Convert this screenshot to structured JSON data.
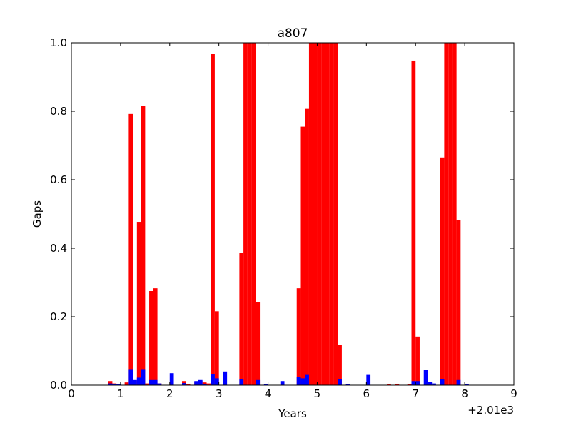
{
  "chart_data": {
    "type": "bar",
    "title": "a807",
    "xlabel": "Years",
    "ylabel": "Gaps",
    "xlim": [
      0,
      9
    ],
    "ylim": [
      0,
      1.0
    ],
    "x_offset_label": "+2.01e3",
    "xticks": [
      "0",
      "1",
      "2",
      "3",
      "4",
      "5",
      "6",
      "7",
      "8",
      "9"
    ],
    "yticks": [
      "0.0",
      "0.2",
      "0.4",
      "0.6",
      "0.8",
      "1.0"
    ],
    "grid": false,
    "bin_width": 0.0833,
    "colors": {
      "red_series": "#ff0000",
      "blue_series": "#0000ff"
    },
    "series": [
      {
        "color": "#ff0000",
        "points": [
          {
            "x": 0.75,
            "y": 0.012
          },
          {
            "x": 0.833,
            "y": 0.005
          },
          {
            "x": 0.917,
            "y": 0.003
          },
          {
            "x": 1.083,
            "y": 0.008
          },
          {
            "x": 1.167,
            "y": 0.792
          },
          {
            "x": 1.25,
            "y": 0.012
          },
          {
            "x": 1.333,
            "y": 0.477
          },
          {
            "x": 1.417,
            "y": 0.815
          },
          {
            "x": 1.5,
            "y": 0.005
          },
          {
            "x": 1.583,
            "y": 0.275
          },
          {
            "x": 1.667,
            "y": 0.283
          },
          {
            "x": 1.75,
            "y": 0.005
          },
          {
            "x": 2.25,
            "y": 0.012
          },
          {
            "x": 2.333,
            "y": 0.003
          },
          {
            "x": 2.5,
            "y": 0.008
          },
          {
            "x": 2.583,
            "y": 0.012
          },
          {
            "x": 2.667,
            "y": 0.008
          },
          {
            "x": 2.75,
            "y": 0.005
          },
          {
            "x": 2.833,
            "y": 0.967
          },
          {
            "x": 2.917,
            "y": 0.216
          },
          {
            "x": 3.417,
            "y": 0.386
          },
          {
            "x": 3.5,
            "y": 1.0
          },
          {
            "x": 3.583,
            "y": 1.0
          },
          {
            "x": 3.667,
            "y": 1.0
          },
          {
            "x": 3.75,
            "y": 0.242
          },
          {
            "x": 4.583,
            "y": 0.283
          },
          {
            "x": 4.667,
            "y": 0.755
          },
          {
            "x": 4.75,
            "y": 0.807
          },
          {
            "x": 4.833,
            "y": 1.0
          },
          {
            "x": 4.917,
            "y": 1.0
          },
          {
            "x": 5.0,
            "y": 1.0
          },
          {
            "x": 5.083,
            "y": 1.0
          },
          {
            "x": 5.167,
            "y": 1.0
          },
          {
            "x": 5.25,
            "y": 1.0
          },
          {
            "x": 5.333,
            "y": 1.0
          },
          {
            "x": 5.417,
            "y": 0.117
          },
          {
            "x": 6.417,
            "y": 0.003
          },
          {
            "x": 6.583,
            "y": 0.003
          },
          {
            "x": 6.833,
            "y": 0.003
          },
          {
            "x": 6.917,
            "y": 0.948
          },
          {
            "x": 7.0,
            "y": 0.142
          },
          {
            "x": 7.5,
            "y": 0.665
          },
          {
            "x": 7.583,
            "y": 1.0
          },
          {
            "x": 7.667,
            "y": 1.0
          },
          {
            "x": 7.75,
            "y": 1.0
          },
          {
            "x": 7.833,
            "y": 0.483
          }
        ]
      },
      {
        "color": "#0000ff",
        "points": [
          {
            "x": 0.75,
            "y": 0.005
          },
          {
            "x": 0.833,
            "y": 0.003
          },
          {
            "x": 0.917,
            "y": 0.003
          },
          {
            "x": 1.167,
            "y": 0.047
          },
          {
            "x": 1.25,
            "y": 0.015
          },
          {
            "x": 1.333,
            "y": 0.022
          },
          {
            "x": 1.417,
            "y": 0.047
          },
          {
            "x": 1.583,
            "y": 0.015
          },
          {
            "x": 1.667,
            "y": 0.015
          },
          {
            "x": 1.75,
            "y": 0.005
          },
          {
            "x": 2.0,
            "y": 0.035
          },
          {
            "x": 2.25,
            "y": 0.006
          },
          {
            "x": 2.5,
            "y": 0.012
          },
          {
            "x": 2.583,
            "y": 0.015
          },
          {
            "x": 2.667,
            "y": 0.003
          },
          {
            "x": 2.833,
            "y": 0.032
          },
          {
            "x": 2.917,
            "y": 0.02
          },
          {
            "x": 3.083,
            "y": 0.04
          },
          {
            "x": 3.417,
            "y": 0.017
          },
          {
            "x": 3.75,
            "y": 0.015
          },
          {
            "x": 3.917,
            "y": 0.003
          },
          {
            "x": 4.25,
            "y": 0.012
          },
          {
            "x": 4.583,
            "y": 0.025
          },
          {
            "x": 4.667,
            "y": 0.02
          },
          {
            "x": 4.75,
            "y": 0.03
          },
          {
            "x": 5.417,
            "y": 0.017
          },
          {
            "x": 5.583,
            "y": 0.003
          },
          {
            "x": 6.0,
            "y": 0.03
          },
          {
            "x": 6.917,
            "y": 0.012
          },
          {
            "x": 7.0,
            "y": 0.012
          },
          {
            "x": 7.167,
            "y": 0.045
          },
          {
            "x": 7.25,
            "y": 0.01
          },
          {
            "x": 7.333,
            "y": 0.005
          },
          {
            "x": 7.5,
            "y": 0.017
          },
          {
            "x": 7.833,
            "y": 0.015
          },
          {
            "x": 8.0,
            "y": 0.003
          }
        ]
      }
    ]
  }
}
